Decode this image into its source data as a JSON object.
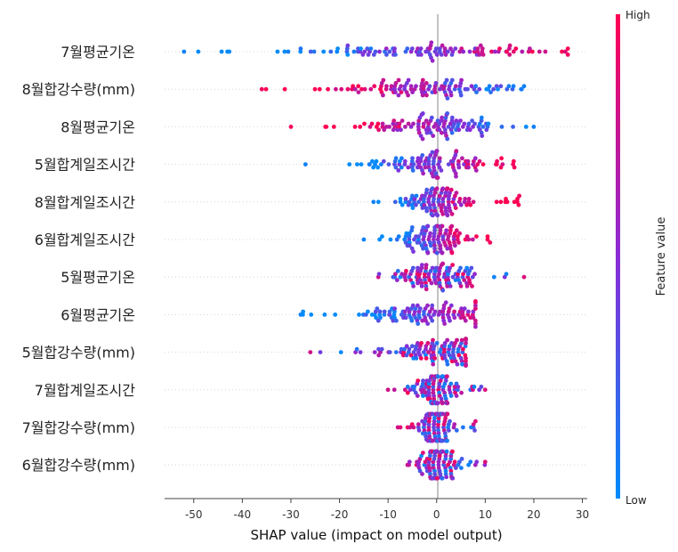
{
  "chart_data": {
    "type": "scatter",
    "subtype": "shap-beeswarm",
    "xlabel": "SHAP value (impact on model output)",
    "xlim": [
      -56,
      31
    ],
    "xticks": [
      -50,
      -40,
      -30,
      -20,
      -10,
      0,
      10,
      20,
      30
    ],
    "features": [
      {
        "name": "7월평균기온",
        "min": -52,
        "max": 27,
        "low_side": "left"
      },
      {
        "name": "8월합강수량(mm)",
        "min": -36,
        "max": 18,
        "low_side": "right"
      },
      {
        "name": "8월평균기온",
        "min": -30,
        "max": 20,
        "low_side": "right"
      },
      {
        "name": "5월합계일조시간",
        "min": -27,
        "max": 16,
        "low_side": "left"
      },
      {
        "name": "8월합계일조시간",
        "min": -13,
        "max": 17,
        "low_side": "left"
      },
      {
        "name": "6월합계일조시간",
        "min": -15,
        "max": 11,
        "low_side": "left"
      },
      {
        "name": "5월평균기온",
        "min": -12,
        "max": 18,
        "low_side": "mixed"
      },
      {
        "name": "6월평균기온",
        "min": -28,
        "max": 8,
        "low_side": "left"
      },
      {
        "name": "5월합강수량(mm)",
        "min": -26,
        "max": 6,
        "low_side": "mixed"
      },
      {
        "name": "7월합계일조시간",
        "min": -10,
        "max": 10,
        "low_side": "mixed"
      },
      {
        "name": "7월합강수량(mm)",
        "min": -8,
        "max": 8,
        "low_side": "mixed"
      },
      {
        "name": "6월합강수량(mm)",
        "min": -6,
        "max": 10,
        "low_side": "mixed"
      }
    ],
    "colorbar": {
      "title": "Feature value",
      "high_label": "High",
      "low_label": "Low",
      "high_color": "#ff0052",
      "mid_color": "#8a2bd6",
      "low_color": "#008bfb"
    },
    "grid": false
  }
}
